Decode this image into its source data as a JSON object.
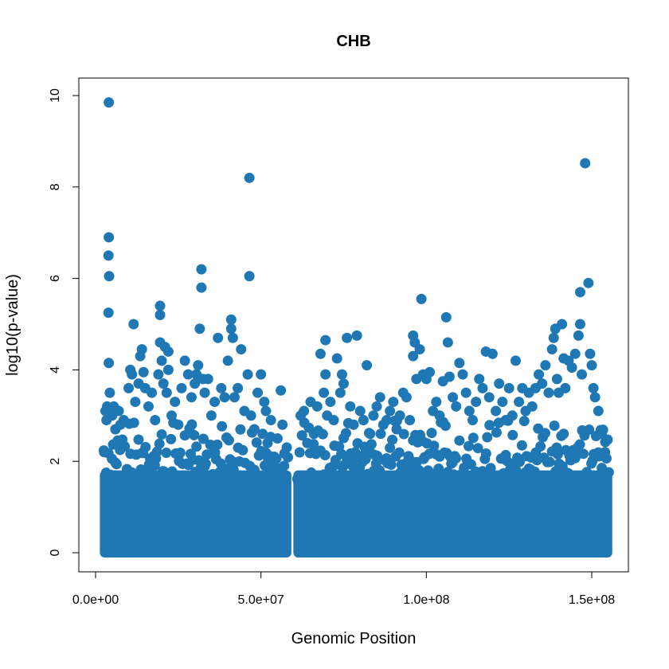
{
  "chart_data": {
    "type": "scatter",
    "title": "CHB",
    "xlabel": "Genomic Position",
    "ylabel": "log10(p-value)",
    "xlim": [
      0,
      155000000
    ],
    "ylim": [
      0,
      10
    ],
    "xticks": [
      {
        "value": 0,
        "label": "0.0e+00"
      },
      {
        "value": 50000000,
        "label": "5.0e+07"
      },
      {
        "value": 100000000,
        "label": "1.0e+08"
      },
      {
        "value": 150000000,
        "label": "1.5e+08"
      }
    ],
    "yticks": [
      {
        "value": 0,
        "label": "0"
      },
      {
        "value": 2,
        "label": "2"
      },
      {
        "value": 4,
        "label": "4"
      },
      {
        "value": 6,
        "label": "6"
      },
      {
        "value": 8,
        "label": "8"
      },
      {
        "value": 10,
        "label": "10"
      }
    ],
    "grid": false,
    "point_color": "#1f77b4",
    "dense_region_note": "",
    "series": [
      {
        "points": [
          [
            2600000,
            2.2
          ],
          [
            3000000,
            3.1
          ],
          [
            3300000,
            2.9
          ],
          [
            3500000,
            3.2
          ],
          [
            3900000,
            5.25
          ],
          [
            4100000,
            6.05
          ],
          [
            3900000,
            6.5
          ],
          [
            4000000,
            6.9
          ],
          [
            4000000,
            9.85
          ],
          [
            4000000,
            4.15
          ],
          [
            4300000,
            3.5
          ],
          [
            5000000,
            3.0
          ],
          [
            5500000,
            3.2
          ],
          [
            6000000,
            2.7
          ],
          [
            7000000,
            3.1
          ],
          [
            7500000,
            2.8
          ],
          [
            8000000,
            2.4
          ],
          [
            8500000,
            2.9
          ],
          [
            10000000,
            3.6
          ],
          [
            10500000,
            4.0
          ],
          [
            11000000,
            3.9
          ],
          [
            11500000,
            5.0
          ],
          [
            12000000,
            3.3
          ],
          [
            13000000,
            3.7
          ],
          [
            13500000,
            4.3
          ],
          [
            14000000,
            4.45
          ],
          [
            14500000,
            3.95
          ],
          [
            15000000,
            3.6
          ],
          [
            16000000,
            3.2
          ],
          [
            17000000,
            3.5
          ],
          [
            18000000,
            2.9
          ],
          [
            19000000,
            3.9
          ],
          [
            19500000,
            4.6
          ],
          [
            19500000,
            5.2
          ],
          [
            19500000,
            5.4
          ],
          [
            20000000,
            4.2
          ],
          [
            20500000,
            3.7
          ],
          [
            21000000,
            4.5
          ],
          [
            21500000,
            3.5
          ],
          [
            22000000,
            4.0
          ],
          [
            22000000,
            4.4
          ],
          [
            23000000,
            3.0
          ],
          [
            24000000,
            3.3
          ],
          [
            25000000,
            2.8
          ],
          [
            26000000,
            3.6
          ],
          [
            27000000,
            4.2
          ],
          [
            28000000,
            3.9
          ],
          [
            29000000,
            3.4
          ],
          [
            30000000,
            3.7
          ],
          [
            30500000,
            3.9
          ],
          [
            31000000,
            4.1
          ],
          [
            31500000,
            4.9
          ],
          [
            32000000,
            5.8
          ],
          [
            32000000,
            6.2
          ],
          [
            32500000,
            3.8
          ],
          [
            33000000,
            3.5
          ],
          [
            34000000,
            3.8
          ],
          [
            35000000,
            3.0
          ],
          [
            36000000,
            3.3
          ],
          [
            37000000,
            4.7
          ],
          [
            38000000,
            3.6
          ],
          [
            39000000,
            3.4
          ],
          [
            40000000,
            4.2
          ],
          [
            41000000,
            5.1
          ],
          [
            41000000,
            4.9
          ],
          [
            41500000,
            4.7
          ],
          [
            42000000,
            3.4
          ],
          [
            43000000,
            3.6
          ],
          [
            44000000,
            4.45
          ],
          [
            45000000,
            3.1
          ],
          [
            46000000,
            3.9
          ],
          [
            46500000,
            6.05
          ],
          [
            46500000,
            8.2
          ],
          [
            47000000,
            3.0
          ],
          [
            48000000,
            2.7
          ],
          [
            49000000,
            3.5
          ],
          [
            50000000,
            3.9
          ],
          [
            50500000,
            2.6
          ],
          [
            51000000,
            3.3
          ],
          [
            51500000,
            3.1
          ],
          [
            52000000,
            2.4
          ],
          [
            53000000,
            2.9
          ],
          [
            54000000,
            2.1
          ],
          [
            55000000,
            2.5
          ],
          [
            56000000,
            3.55
          ],
          [
            56500000,
            2.8
          ],
          [
            57000000,
            1.9
          ],
          [
            62000000,
            3.0
          ],
          [
            63000000,
            3.1
          ],
          [
            64000000,
            2.4
          ],
          [
            65000000,
            3.3
          ],
          [
            66000000,
            2.6
          ],
          [
            67000000,
            3.2
          ],
          [
            68000000,
            4.35
          ],
          [
            69000000,
            3.5
          ],
          [
            69500000,
            4.65
          ],
          [
            69500000,
            3.9
          ],
          [
            70000000,
            3.0
          ],
          [
            71000000,
            3.3
          ],
          [
            72000000,
            2.9
          ],
          [
            73000000,
            4.25
          ],
          [
            74000000,
            3.5
          ],
          [
            74500000,
            3.9
          ],
          [
            75000000,
            3.7
          ],
          [
            76000000,
            4.7
          ],
          [
            77000000,
            3.2
          ],
          [
            78000000,
            2.8
          ],
          [
            79000000,
            4.75
          ],
          [
            80000000,
            3.1
          ],
          [
            81000000,
            2.9
          ],
          [
            82000000,
            4.1
          ],
          [
            83000000,
            2.6
          ],
          [
            84000000,
            3.0
          ],
          [
            85000000,
            3.2
          ],
          [
            86000000,
            3.4
          ],
          [
            87000000,
            2.8
          ],
          [
            88000000,
            2.9
          ],
          [
            89000000,
            3.1
          ],
          [
            90000000,
            3.3
          ],
          [
            91000000,
            2.7
          ],
          [
            92000000,
            3.0
          ],
          [
            93000000,
            3.5
          ],
          [
            94000000,
            3.4
          ],
          [
            95000000,
            2.9
          ],
          [
            96000000,
            4.75
          ],
          [
            96000000,
            4.3
          ],
          [
            96500000,
            4.6
          ],
          [
            97000000,
            3.8
          ],
          [
            98000000,
            4.45
          ],
          [
            98500000,
            5.55
          ],
          [
            99000000,
            3.9
          ],
          [
            100000000,
            3.8
          ],
          [
            101000000,
            3.95
          ],
          [
            102000000,
            3.1
          ],
          [
            103000000,
            3.3
          ],
          [
            104000000,
            3.0
          ],
          [
            105000000,
            3.75
          ],
          [
            106000000,
            5.15
          ],
          [
            106500000,
            4.6
          ],
          [
            107000000,
            3.85
          ],
          [
            108000000,
            3.4
          ],
          [
            109000000,
            3.2
          ],
          [
            110000000,
            4.15
          ],
          [
            111000000,
            3.9
          ],
          [
            112000000,
            3.5
          ],
          [
            113000000,
            3.1
          ],
          [
            114000000,
            2.9
          ],
          [
            115000000,
            3.3
          ],
          [
            116000000,
            3.8
          ],
          [
            117000000,
            3.6
          ],
          [
            118000000,
            4.4
          ],
          [
            119000000,
            3.4
          ],
          [
            120000000,
            4.35
          ],
          [
            121000000,
            3.1
          ],
          [
            122000000,
            3.7
          ],
          [
            123000000,
            3.3
          ],
          [
            124000000,
            2.9
          ],
          [
            125000000,
            3.6
          ],
          [
            126000000,
            3.0
          ],
          [
            127000000,
            4.2
          ],
          [
            128000000,
            3.3
          ],
          [
            129000000,
            3.6
          ],
          [
            130000000,
            3.1
          ],
          [
            131000000,
            3.5
          ],
          [
            132000000,
            3.2
          ],
          [
            133000000,
            3.6
          ],
          [
            134000000,
            3.9
          ],
          [
            135000000,
            3.7
          ],
          [
            136000000,
            4.1
          ],
          [
            137000000,
            3.5
          ],
          [
            138000000,
            4.45
          ],
          [
            138500000,
            4.7
          ],
          [
            139000000,
            4.9
          ],
          [
            139500000,
            3.8
          ],
          [
            140000000,
            3.5
          ],
          [
            141000000,
            5.0
          ],
          [
            141500000,
            4.25
          ],
          [
            142000000,
            3.6
          ],
          [
            143000000,
            4.2
          ],
          [
            144000000,
            4.05
          ],
          [
            145000000,
            4.35
          ],
          [
            146000000,
            4.75
          ],
          [
            146500000,
            5.0
          ],
          [
            146500000,
            5.7
          ],
          [
            147000000,
            3.9
          ],
          [
            148000000,
            8.52
          ],
          [
            149000000,
            5.9
          ],
          [
            149500000,
            4.35
          ],
          [
            150000000,
            4.1
          ],
          [
            150500000,
            3.6
          ],
          [
            151000000,
            3.4
          ],
          [
            152000000,
            3.1
          ],
          [
            153000000,
            2.6
          ],
          [
            154000000,
            2.2
          ]
        ]
      }
    ]
  }
}
